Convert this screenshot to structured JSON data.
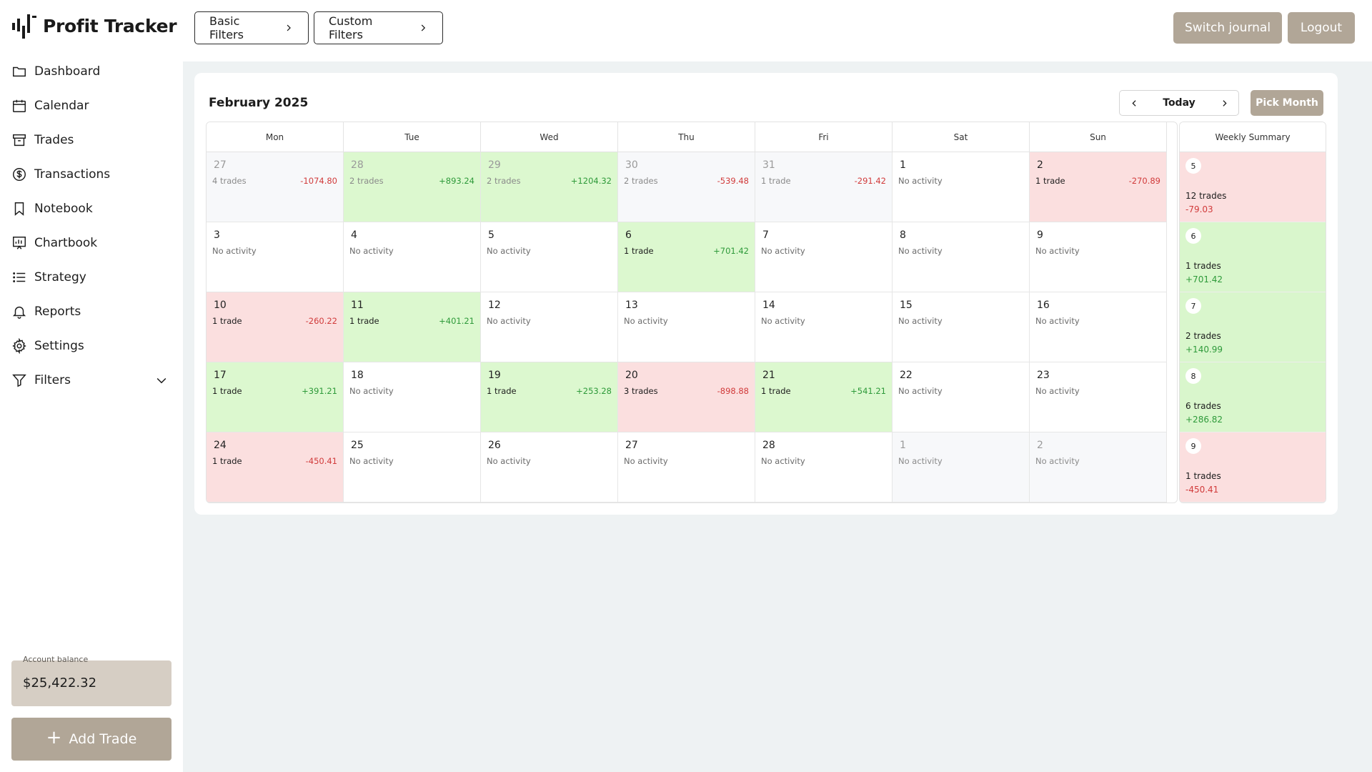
{
  "app": {
    "title": "Profit Tracker"
  },
  "sidebar": {
    "items": [
      {
        "label": "Dashboard",
        "icon": "folder-icon"
      },
      {
        "label": "Calendar",
        "icon": "calendar-icon"
      },
      {
        "label": "Trades",
        "icon": "archive-icon"
      },
      {
        "label": "Transactions",
        "icon": "dollar-icon"
      },
      {
        "label": "Notebook",
        "icon": "bookmark-icon"
      },
      {
        "label": "Chartbook",
        "icon": "chart-icon"
      },
      {
        "label": "Strategy",
        "icon": "list-icon"
      },
      {
        "label": "Reports",
        "icon": "bell-icon"
      },
      {
        "label": "Settings",
        "icon": "gear-icon"
      },
      {
        "label": "Filters",
        "icon": "filter-icon"
      }
    ],
    "balance_label": "Account balance",
    "balance_value": "$25,422.32",
    "add_trade_label": "Add Trade"
  },
  "topbar": {
    "basic_filters": "Basic Filters",
    "custom_filters": "Custom Filters",
    "switch_journal": "Switch journal",
    "logout": "Logout"
  },
  "calendar": {
    "month_label": "February 2025",
    "today_label": "Today",
    "pick_month_label": "Pick Month",
    "weekdays": [
      "Mon",
      "Tue",
      "Wed",
      "Thu",
      "Fri",
      "Sat",
      "Sun"
    ],
    "weekly_summary_label": "Weekly Summary",
    "weeks": [
      [
        {
          "day": "27",
          "trades": "4 trades",
          "pnl": "-1074.80",
          "state": "outside"
        },
        {
          "day": "28",
          "trades": "2 trades",
          "pnl": "+893.24",
          "state": "outside-pos"
        },
        {
          "day": "29",
          "trades": "2 trades",
          "pnl": "+1204.32",
          "state": "outside-pos"
        },
        {
          "day": "30",
          "trades": "2 trades",
          "pnl": "-539.48",
          "state": "outside"
        },
        {
          "day": "31",
          "trades": "1 trade",
          "pnl": "-291.42",
          "state": "outside"
        },
        {
          "day": "1",
          "trades": "No activity",
          "pnl": "",
          "state": "empty"
        },
        {
          "day": "2",
          "trades": "1 trade",
          "pnl": "-270.89",
          "state": "neg"
        }
      ],
      [
        {
          "day": "3",
          "trades": "No activity",
          "pnl": "",
          "state": "empty"
        },
        {
          "day": "4",
          "trades": "No activity",
          "pnl": "",
          "state": "empty"
        },
        {
          "day": "5",
          "trades": "No activity",
          "pnl": "",
          "state": "empty"
        },
        {
          "day": "6",
          "trades": "1 trade",
          "pnl": "+701.42",
          "state": "pos"
        },
        {
          "day": "7",
          "trades": "No activity",
          "pnl": "",
          "state": "empty"
        },
        {
          "day": "8",
          "trades": "No activity",
          "pnl": "",
          "state": "empty"
        },
        {
          "day": "9",
          "trades": "No activity",
          "pnl": "",
          "state": "empty"
        }
      ],
      [
        {
          "day": "10",
          "trades": "1 trade",
          "pnl": "-260.22",
          "state": "neg"
        },
        {
          "day": "11",
          "trades": "1 trade",
          "pnl": "+401.21",
          "state": "pos"
        },
        {
          "day": "12",
          "trades": "No activity",
          "pnl": "",
          "state": "empty"
        },
        {
          "day": "13",
          "trades": "No activity",
          "pnl": "",
          "state": "empty"
        },
        {
          "day": "14",
          "trades": "No activity",
          "pnl": "",
          "state": "empty"
        },
        {
          "day": "15",
          "trades": "No activity",
          "pnl": "",
          "state": "empty"
        },
        {
          "day": "16",
          "trades": "No activity",
          "pnl": "",
          "state": "empty"
        }
      ],
      [
        {
          "day": "17",
          "trades": "1 trade",
          "pnl": "+391.21",
          "state": "pos"
        },
        {
          "day": "18",
          "trades": "No activity",
          "pnl": "",
          "state": "empty"
        },
        {
          "day": "19",
          "trades": "1 trade",
          "pnl": "+253.28",
          "state": "pos"
        },
        {
          "day": "20",
          "trades": "3 trades",
          "pnl": "-898.88",
          "state": "neg"
        },
        {
          "day": "21",
          "trades": "1 trade",
          "pnl": "+541.21",
          "state": "pos"
        },
        {
          "day": "22",
          "trades": "No activity",
          "pnl": "",
          "state": "empty"
        },
        {
          "day": "23",
          "trades": "No activity",
          "pnl": "",
          "state": "empty"
        }
      ],
      [
        {
          "day": "24",
          "trades": "1 trade",
          "pnl": "-450.41",
          "state": "neg"
        },
        {
          "day": "25",
          "trades": "No activity",
          "pnl": "",
          "state": "empty"
        },
        {
          "day": "26",
          "trades": "No activity",
          "pnl": "",
          "state": "empty"
        },
        {
          "day": "27",
          "trades": "No activity",
          "pnl": "",
          "state": "empty"
        },
        {
          "day": "28",
          "trades": "No activity",
          "pnl": "",
          "state": "empty"
        },
        {
          "day": "1",
          "trades": "No activity",
          "pnl": "",
          "state": "outside-empty"
        },
        {
          "day": "2",
          "trades": "No activity",
          "pnl": "",
          "state": "outside-empty"
        }
      ]
    ],
    "weekly_summary": [
      {
        "week": "5",
        "trades": "12 trades",
        "pnl": "-79.03",
        "state": "neg"
      },
      {
        "week": "6",
        "trades": "1 trades",
        "pnl": "+701.42",
        "state": "pos"
      },
      {
        "week": "7",
        "trades": "2 trades",
        "pnl": "+140.99",
        "state": "pos"
      },
      {
        "week": "8",
        "trades": "6 trades",
        "pnl": "+286.82",
        "state": "pos"
      },
      {
        "week": "9",
        "trades": "1 trades",
        "pnl": "-450.41",
        "state": "neg"
      }
    ]
  },
  "colors": {
    "accent": "#b1a697",
    "positive": "#2e9a3a",
    "negative": "#d13b3b",
    "positive_bg": "#dcf8cf",
    "negative_bg": "#fbdfdf"
  }
}
